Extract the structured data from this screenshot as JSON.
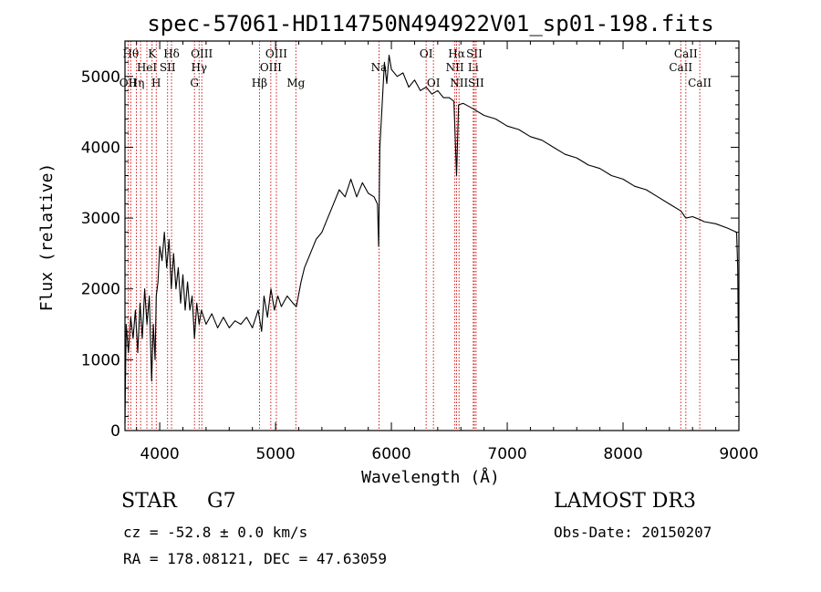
{
  "chart_data": {
    "type": "line",
    "title": "spec-57061-HD114750N494922V01_sp01-198.fits",
    "xlabel": "Wavelength (Å)",
    "ylabel": "Flux (relative)",
    "xlim": [
      3700,
      9000
    ],
    "ylim": [
      0,
      5500
    ],
    "xticks": [
      4000,
      5000,
      6000,
      7000,
      8000,
      9000
    ],
    "yticks": [
      0,
      1000,
      2000,
      3000,
      4000,
      5000
    ],
    "grid": false,
    "series": [
      {
        "color": "#000000",
        "points": [
          [
            3700,
            100
          ],
          [
            3710,
            1500
          ],
          [
            3730,
            1100
          ],
          [
            3750,
            1600
          ],
          [
            3770,
            1300
          ],
          [
            3790,
            1700
          ],
          [
            3810,
            1100
          ],
          [
            3830,
            1800
          ],
          [
            3850,
            1300
          ],
          [
            3870,
            2000
          ],
          [
            3890,
            1500
          ],
          [
            3910,
            1900
          ],
          [
            3930,
            700
          ],
          [
            3945,
            1500
          ],
          [
            3960,
            1000
          ],
          [
            3970,
            1900
          ],
          [
            3985,
            2100
          ],
          [
            4000,
            2600
          ],
          [
            4020,
            2400
          ],
          [
            4040,
            2800
          ],
          [
            4060,
            2300
          ],
          [
            4080,
            2700
          ],
          [
            4100,
            2000
          ],
          [
            4120,
            2500
          ],
          [
            4140,
            2000
          ],
          [
            4160,
            2300
          ],
          [
            4180,
            1800
          ],
          [
            4200,
            2200
          ],
          [
            4220,
            1700
          ],
          [
            4240,
            2100
          ],
          [
            4260,
            1700
          ],
          [
            4280,
            1900
          ],
          [
            4300,
            1300
          ],
          [
            4320,
            1800
          ],
          [
            4340,
            1500
          ],
          [
            4360,
            1700
          ],
          [
            4400,
            1500
          ],
          [
            4450,
            1650
          ],
          [
            4500,
            1450
          ],
          [
            4550,
            1600
          ],
          [
            4600,
            1450
          ],
          [
            4650,
            1550
          ],
          [
            4700,
            1500
          ],
          [
            4750,
            1600
          ],
          [
            4800,
            1450
          ],
          [
            4850,
            1700
          ],
          [
            4880,
            1400
          ],
          [
            4900,
            1900
          ],
          [
            4930,
            1600
          ],
          [
            4960,
            2000
          ],
          [
            4990,
            1700
          ],
          [
            5020,
            1900
          ],
          [
            5050,
            1750
          ],
          [
            5100,
            1900
          ],
          [
            5150,
            1800
          ],
          [
            5180,
            1750
          ],
          [
            5220,
            2100
          ],
          [
            5250,
            2300
          ],
          [
            5300,
            2500
          ],
          [
            5350,
            2700
          ],
          [
            5400,
            2800
          ],
          [
            5450,
            3000
          ],
          [
            5500,
            3200
          ],
          [
            5550,
            3400
          ],
          [
            5600,
            3300
          ],
          [
            5650,
            3550
          ],
          [
            5700,
            3300
          ],
          [
            5750,
            3500
          ],
          [
            5800,
            3350
          ],
          [
            5850,
            3300
          ],
          [
            5880,
            3200
          ],
          [
            5890,
            2600
          ],
          [
            5900,
            4000
          ],
          [
            5920,
            4600
          ],
          [
            5940,
            5200
          ],
          [
            5960,
            4900
          ],
          [
            5980,
            5300
          ],
          [
            6000,
            5100
          ],
          [
            6050,
            5000
          ],
          [
            6100,
            5050
          ],
          [
            6150,
            4850
          ],
          [
            6200,
            4950
          ],
          [
            6250,
            4800
          ],
          [
            6300,
            4850
          ],
          [
            6350,
            4750
          ],
          [
            6400,
            4800
          ],
          [
            6450,
            4700
          ],
          [
            6500,
            4700
          ],
          [
            6540,
            4650
          ],
          [
            6563,
            3600
          ],
          [
            6580,
            4600
          ],
          [
            6620,
            4620
          ],
          [
            6700,
            4550
          ],
          [
            6800,
            4450
          ],
          [
            6900,
            4400
          ],
          [
            7000,
            4300
          ],
          [
            7100,
            4250
          ],
          [
            7200,
            4150
          ],
          [
            7300,
            4100
          ],
          [
            7400,
            4000
          ],
          [
            7500,
            3900
          ],
          [
            7600,
            3850
          ],
          [
            7700,
            3750
          ],
          [
            7800,
            3700
          ],
          [
            7900,
            3600
          ],
          [
            8000,
            3550
          ],
          [
            8100,
            3450
          ],
          [
            8200,
            3400
          ],
          [
            8300,
            3300
          ],
          [
            8400,
            3200
          ],
          [
            8500,
            3100
          ],
          [
            8542,
            3000
          ],
          [
            8600,
            3020
          ],
          [
            8662,
            2980
          ],
          [
            8700,
            2950
          ],
          [
            8800,
            2920
          ],
          [
            8900,
            2860
          ],
          [
            8980,
            2800
          ],
          [
            8990,
            2300
          ],
          [
            9000,
            400
          ]
        ]
      }
    ],
    "line_markers": [
      {
        "x": 3727,
        "label": "OII",
        "row": 3
      },
      {
        "x": 3750,
        "label": "Hθ",
        "row": 1
      },
      {
        "x": 3798,
        "label": "Hη",
        "row": 3
      },
      {
        "x": 3835,
        "label": "",
        "row": 0
      },
      {
        "x": 3889,
        "label": "HeI",
        "row": 2
      },
      {
        "x": 3934,
        "label": "K",
        "row": 1
      },
      {
        "x": 3970,
        "label": "H",
        "row": 3
      },
      {
        "x": 4068,
        "label": "SII",
        "row": 2
      },
      {
        "x": 4102,
        "label": "Hδ",
        "row": 1
      },
      {
        "x": 4300,
        "label": "G",
        "row": 3
      },
      {
        "x": 4340,
        "label": "Hγ",
        "row": 2
      },
      {
        "x": 4363,
        "label": "OIII",
        "row": 1
      },
      {
        "x": 4861,
        "label": "Hβ",
        "row": 3
      },
      {
        "x": 4959,
        "label": "OIII",
        "row": 2
      },
      {
        "x": 5007,
        "label": "OIII",
        "row": 1
      },
      {
        "x": 5175,
        "label": "Mg",
        "row": 3
      },
      {
        "x": 5893,
        "label": "Na",
        "row": 2
      },
      {
        "x": 6300,
        "label": "OI",
        "row": 1
      },
      {
        "x": 6363,
        "label": "OI",
        "row": 3
      },
      {
        "x": 6548,
        "label": "NII",
        "row": 2
      },
      {
        "x": 6563,
        "label": "Hα",
        "row": 1
      },
      {
        "x": 6584,
        "label": "NII",
        "row": 3
      },
      {
        "x": 6707,
        "label": "Li",
        "row": 2
      },
      {
        "x": 6716,
        "label": "SII",
        "row": 1
      },
      {
        "x": 6731,
        "label": "SII",
        "row": 3
      },
      {
        "x": 8498,
        "label": "CaII",
        "row": 2
      },
      {
        "x": 8542,
        "label": "CaII",
        "row": 1
      },
      {
        "x": 8662,
        "label": "CaII",
        "row": 3
      }
    ]
  },
  "footer": {
    "class_label": "STAR",
    "subclass": "G7",
    "survey": "LAMOST DR3",
    "velocity": "cz = -52.8 ± 0.0 km/s",
    "obs_date": "Obs-Date: 20150207",
    "coords": "RA = 178.08121, DEC =  47.63059"
  }
}
